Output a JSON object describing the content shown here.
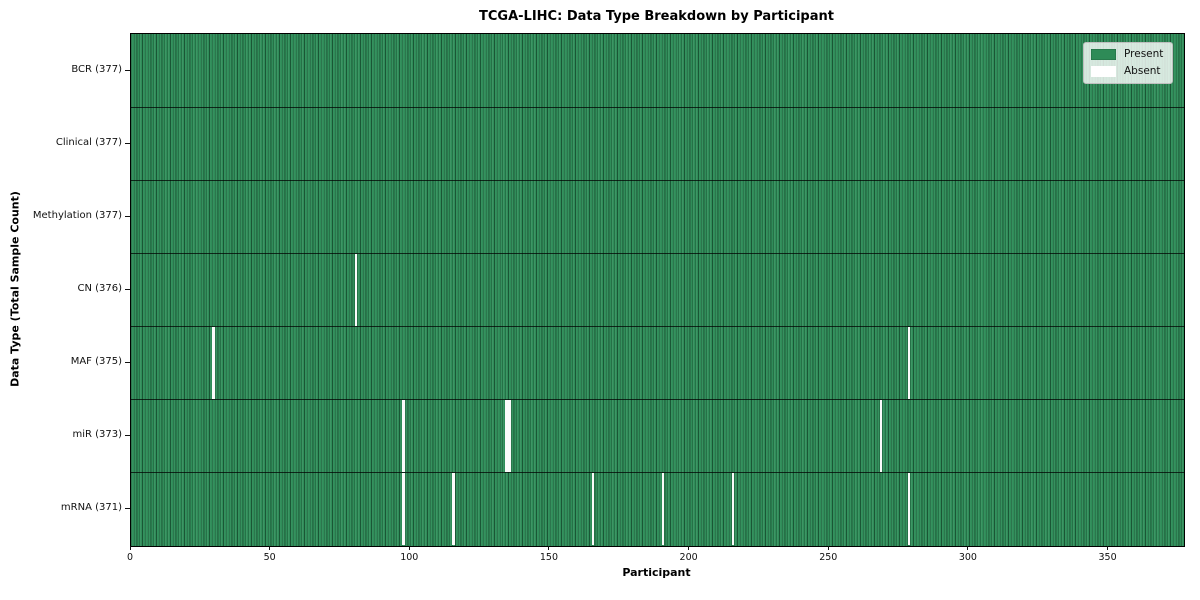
{
  "chart_data": {
    "type": "heatmap",
    "title": "TCGA-LIHC: Data Type Breakdown by Participant",
    "xlabel": "Participant",
    "ylabel": "Data Type (Total Sample Count)",
    "x_ticks": [
      0,
      50,
      100,
      150,
      200,
      250,
      300,
      350
    ],
    "x_range": [
      0,
      377
    ],
    "n_participants": 377,
    "grid": false,
    "legend_position": "upper right",
    "legend": [
      {
        "name": "present",
        "label": "Present",
        "color": "#2e8b57"
      },
      {
        "name": "absent",
        "label": "Absent",
        "color": "#ffffff"
      }
    ],
    "rows": [
      {
        "label": "BCR (377)",
        "data_type": "BCR",
        "total": 377,
        "absent_participants": []
      },
      {
        "label": "Clinical (377)",
        "data_type": "Clinical",
        "total": 377,
        "absent_participants": []
      },
      {
        "label": "Methylation (377)",
        "data_type": "Methylation",
        "total": 377,
        "absent_participants": []
      },
      {
        "label": "CN (376)",
        "data_type": "CN",
        "total": 376,
        "absent_participants": [
          80
        ]
      },
      {
        "label": "MAF (375)",
        "data_type": "MAF",
        "total": 375,
        "absent_participants": [
          29,
          278
        ]
      },
      {
        "label": "miR (373)",
        "data_type": "miR",
        "total": 373,
        "absent_participants": [
          97,
          134,
          135,
          268
        ]
      },
      {
        "label": "mRNA (371)",
        "data_type": "mRNA",
        "total": 371,
        "absent_participants": [
          97,
          115,
          165,
          190,
          215,
          278
        ]
      }
    ],
    "colors": {
      "present": "#2e8b57",
      "absent": "#ffffff",
      "cell_edge": "#123c26",
      "plot_border": "#000000"
    }
  }
}
